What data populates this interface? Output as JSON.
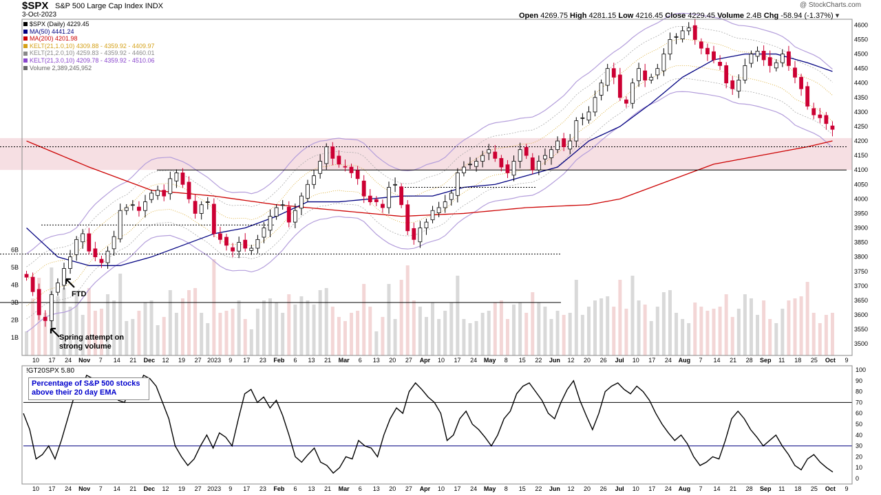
{
  "header": {
    "ticker": "$SPX",
    "name": "S&P 500 Large Cap Index",
    "exchange": "INDX",
    "date": "3-Oct-2023",
    "watermark": "@ StockCharts.com",
    "open_label": "Open",
    "open": "4269.75",
    "high_label": "High",
    "high": "4281.15",
    "low_label": "Low",
    "low": "4216.45",
    "close_label": "Close",
    "close": "4229.45",
    "volume_label": "Volume",
    "volume": "2.4B",
    "chg_label": "Chg",
    "chg": "-58.94 (-1.37%)"
  },
  "legend": [
    {
      "text": "$SPX (Daily) 4229.45",
      "color": "#000000"
    },
    {
      "text": "MA(50) 4441.24",
      "color": "#000080"
    },
    {
      "text": "MA(200) 4201.98",
      "color": "#cc0000"
    },
    {
      "text": "KELT(21,1.0,10) 4309.88 - 4359.92 - 4409.97",
      "color": "#d4a017"
    },
    {
      "text": "KELT(21,2.0,10) 4259.83 - 4359.92 - 4460.01",
      "color": "#888888"
    },
    {
      "text": "KELT(21,3.0,10) 4209.78 - 4359.92 - 4510.06",
      "color": "#8844cc"
    },
    {
      "text": "Volume 2,389,245,952",
      "color": "#666666"
    }
  ],
  "annotations": {
    "ftd": "FTD",
    "spring": "Spring attempt on strong volume",
    "pct_box": "Percentage of S&P 500 stocks above their 20 day EMA"
  },
  "colors": {
    "up": "#000000",
    "down": "#cc0033",
    "ma50": "#000080",
    "ma200": "#cc0000",
    "kelt1": "#d4a017",
    "kelt2": "#aaaaaa",
    "kelt3": "#b39ddb",
    "zone": "#f6dfe3",
    "vol_up": "#d9d9d9",
    "vol_down": "#f3d6d6"
  },
  "chart_data": [
    {
      "type": "candlestick",
      "title": "$SPX S&P 500 Large Cap Index",
      "ylim": [
        3460,
        4620
      ],
      "yticks": [
        3500,
        3550,
        3600,
        3650,
        3700,
        3750,
        3800,
        3850,
        3900,
        3950,
        4000,
        4050,
        4100,
        4150,
        4200,
        4250,
        4300,
        4350,
        4400,
        4450,
        4500,
        4550,
        4600
      ],
      "xtick_labels": [
        "10",
        "17",
        "24",
        "Nov",
        "7",
        "14",
        "21",
        "Dec",
        "12",
        "19",
        "27",
        "2023",
        "9",
        "17",
        "23",
        "Feb",
        "6",
        "13",
        "21",
        "Mar",
        "6",
        "13",
        "20",
        "27",
        "Apr",
        "10",
        "17",
        "24",
        "May",
        "8",
        "15",
        "22",
        "Jun",
        "12",
        "20",
        "26",
        "Jul",
        "10",
        "17",
        "24",
        "Aug",
        "7",
        "14",
        "21",
        "28",
        "Sep",
        "11",
        "18",
        "25",
        "Oct",
        "9"
      ],
      "volume_ticks": [
        "1B",
        "2B",
        "3B",
        "4B",
        "5B",
        "6B"
      ],
      "horizontal_levels": [
        4100,
        4180,
        3810,
        3910,
        4040
      ],
      "resistance_zone": [
        4100,
        4210
      ],
      "close_path": [
        [
          0,
          3730
        ],
        [
          1,
          3680
        ],
        [
          2,
          3600
        ],
        [
          3,
          3580
        ],
        [
          4,
          3670
        ],
        [
          5,
          3710
        ],
        [
          6,
          3760
        ],
        [
          7,
          3800
        ],
        [
          8,
          3860
        ],
        [
          9,
          3880
        ],
        [
          10,
          3820
        ],
        [
          11,
          3800
        ],
        [
          12,
          3780
        ],
        [
          13,
          3820
        ],
        [
          14,
          3870
        ],
        [
          15,
          3960
        ],
        [
          16,
          3970
        ],
        [
          17,
          3980
        ],
        [
          18,
          3960
        ],
        [
          19,
          3990
        ],
        [
          20,
          4020
        ],
        [
          21,
          4030
        ],
        [
          22,
          4010
        ],
        [
          23,
          4070
        ],
        [
          24,
          4090
        ],
        [
          25,
          4050
        ],
        [
          26,
          4000
        ],
        [
          27,
          3950
        ],
        [
          28,
          3980
        ],
        [
          29,
          3990
        ],
        [
          30,
          3880
        ],
        [
          31,
          3860
        ],
        [
          32,
          3840
        ],
        [
          33,
          3820
        ],
        [
          34,
          3850
        ],
        [
          35,
          3830
        ],
        [
          36,
          3830
        ],
        [
          37,
          3860
        ],
        [
          38,
          3900
        ],
        [
          39,
          3940
        ],
        [
          40,
          3970
        ],
        [
          41,
          3980
        ],
        [
          42,
          3920
        ],
        [
          43,
          3960
        ],
        [
          44,
          4010
        ],
        [
          45,
          4050
        ],
        [
          46,
          4080
        ],
        [
          47,
          4130
        ],
        [
          48,
          4180
        ],
        [
          49,
          4140
        ],
        [
          50,
          4120
        ],
        [
          51,
          4110
        ],
        [
          52,
          4090
        ],
        [
          53,
          4070
        ],
        [
          54,
          4010
        ],
        [
          55,
          3990
        ],
        [
          56,
          3990
        ],
        [
          57,
          3970
        ],
        [
          58,
          4040
        ],
        [
          59,
          4050
        ],
        [
          60,
          3980
        ],
        [
          61,
          3890
        ],
        [
          62,
          3860
        ],
        [
          63,
          3900
        ],
        [
          64,
          3920
        ],
        [
          65,
          3960
        ],
        [
          66,
          3970
        ],
        [
          67,
          3990
        ],
        [
          68,
          4020
        ],
        [
          69,
          4090
        ],
        [
          70,
          4110
        ],
        [
          71,
          4120
        ],
        [
          72,
          4130
        ],
        [
          73,
          4150
        ],
        [
          74,
          4170
        ],
        [
          75,
          4140
        ],
        [
          76,
          4110
        ],
        [
          77,
          4090
        ],
        [
          78,
          4130
        ],
        [
          79,
          4170
        ],
        [
          80,
          4150
        ],
        [
          81,
          4100
        ],
        [
          82,
          4130
        ],
        [
          83,
          4150
        ],
        [
          84,
          4170
        ],
        [
          85,
          4200
        ],
        [
          86,
          4180
        ],
        [
          87,
          4200
        ],
        [
          88,
          4270
        ],
        [
          89,
          4280
        ],
        [
          90,
          4300
        ],
        [
          91,
          4350
        ],
        [
          92,
          4400
        ],
        [
          93,
          4450
        ],
        [
          94,
          4420
        ],
        [
          95,
          4350
        ],
        [
          96,
          4330
        ],
        [
          97,
          4400
        ],
        [
          98,
          4450
        ],
        [
          99,
          4410
        ],
        [
          100,
          4420
        ],
        [
          101,
          4450
        ],
        [
          102,
          4500
        ],
        [
          103,
          4550
        ],
        [
          104,
          4560
        ],
        [
          105,
          4580
        ],
        [
          106,
          4590
        ],
        [
          107,
          4550
        ],
        [
          108,
          4520
        ],
        [
          109,
          4500
        ],
        [
          110,
          4480
        ],
        [
          111,
          4460
        ],
        [
          112,
          4400
        ],
        [
          113,
          4380
        ],
        [
          114,
          4410
        ],
        [
          115,
          4460
        ],
        [
          116,
          4500
        ],
        [
          117,
          4510
        ],
        [
          118,
          4480
        ],
        [
          119,
          4460
        ],
        [
          120,
          4470
        ],
        [
          121,
          4500
        ],
        [
          122,
          4460
        ],
        [
          123,
          4420
        ],
        [
          124,
          4380
        ],
        [
          125,
          4320
        ],
        [
          126,
          4290
        ],
        [
          127,
          4280
        ],
        [
          128,
          4260
        ],
        [
          129,
          4240
        ]
      ],
      "ma50_path": [
        [
          0,
          3900
        ],
        [
          5,
          3800
        ],
        [
          10,
          3770
        ],
        [
          15,
          3770
        ],
        [
          20,
          3800
        ],
        [
          25,
          3840
        ],
        [
          30,
          3880
        ],
        [
          35,
          3900
        ],
        [
          40,
          3940
        ],
        [
          45,
          3990
        ],
        [
          50,
          3990
        ],
        [
          55,
          4000
        ],
        [
          60,
          4010
        ],
        [
          65,
          4010
        ],
        [
          70,
          4040
        ],
        [
          75,
          4050
        ],
        [
          80,
          4080
        ],
        [
          85,
          4110
        ],
        [
          90,
          4200
        ],
        [
          95,
          4250
        ],
        [
          100,
          4330
        ],
        [
          105,
          4420
        ],
        [
          110,
          4480
        ],
        [
          115,
          4500
        ],
        [
          120,
          4500
        ],
        [
          125,
          4470
        ],
        [
          129,
          4440
        ]
      ],
      "ma200_path": [
        [
          0,
          4200
        ],
        [
          10,
          4110
        ],
        [
          20,
          4030
        ],
        [
          30,
          4010
        ],
        [
          40,
          3980
        ],
        [
          50,
          3960
        ],
        [
          60,
          3940
        ],
        [
          70,
          3950
        ],
        [
          80,
          3970
        ],
        [
          90,
          3980
        ],
        [
          95,
          4000
        ],
        [
          100,
          4040
        ],
        [
          105,
          4080
        ],
        [
          110,
          4120
        ],
        [
          115,
          4140
        ],
        [
          120,
          4160
        ],
        [
          125,
          4180
        ],
        [
          129,
          4200
        ]
      ]
    },
    {
      "type": "line",
      "title": "!GT20SPX 5.80",
      "ylim": [
        0,
        100
      ],
      "yticks": [
        0,
        10,
        20,
        30,
        40,
        50,
        60,
        70,
        80,
        90,
        100
      ],
      "reference_lines": [
        70,
        30
      ],
      "values": [
        60,
        45,
        18,
        22,
        30,
        18,
        35,
        55,
        75,
        80,
        95,
        92,
        75,
        88,
        82,
        72,
        70,
        88,
        80,
        95,
        92,
        85,
        70,
        55,
        30,
        20,
        12,
        18,
        30,
        40,
        28,
        42,
        38,
        30,
        55,
        78,
        82,
        70,
        75,
        65,
        72,
        58,
        40,
        20,
        15,
        22,
        28,
        15,
        12,
        5,
        10,
        20,
        18,
        35,
        30,
        28,
        20,
        40,
        55,
        65,
        60,
        80,
        88,
        82,
        75,
        70,
        60,
        35,
        40,
        55,
        62,
        50,
        45,
        38,
        30,
        40,
        55,
        62,
        78,
        85,
        88,
        80,
        72,
        60,
        55,
        70,
        82,
        90,
        72,
        58,
        45,
        60,
        80,
        85,
        88,
        82,
        78,
        85,
        80,
        72,
        60,
        50,
        42,
        35,
        40,
        32,
        20,
        12,
        15,
        20,
        18,
        35,
        55,
        62,
        55,
        45,
        38,
        30,
        35,
        40,
        30,
        22,
        12,
        8,
        18,
        22,
        15,
        10,
        6
      ]
    }
  ]
}
